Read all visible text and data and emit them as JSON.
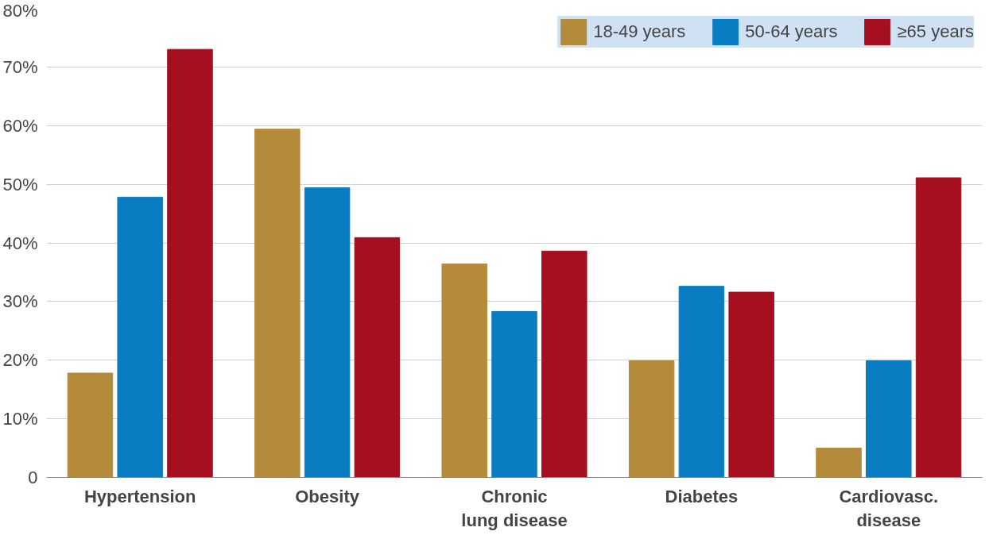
{
  "chart_data": {
    "type": "bar",
    "categories": [
      "Hypertension",
      "Obesity",
      "Chronic\nlung disease",
      "Diabetes",
      "Cardiovasc.\ndisease"
    ],
    "series": [
      {
        "name": "18-49 years",
        "color": "#b38b3a",
        "values": [
          17.8,
          59.4,
          36.4,
          19.9,
          5.0
        ]
      },
      {
        "name": "50-64 years",
        "color": "#0a7cc1",
        "values": [
          47.8,
          49.4,
          28.3,
          32.6,
          19.9
        ]
      },
      {
        "name": "≥65 years",
        "color": "#a50f20",
        "values": [
          73.0,
          40.9,
          38.6,
          31.6,
          51.1
        ]
      }
    ],
    "ylim": [
      0,
      80
    ],
    "yticks": [
      {
        "value": 0,
        "label": "0"
      },
      {
        "value": 10,
        "label": "10%"
      },
      {
        "value": 20,
        "label": "20%"
      },
      {
        "value": 30,
        "label": "30%"
      },
      {
        "value": 40,
        "label": "40%"
      },
      {
        "value": 50,
        "label": "50%"
      },
      {
        "value": 60,
        "label": "60%"
      },
      {
        "value": 70,
        "label": "70%"
      },
      {
        "value": 80,
        "label": "80%"
      }
    ],
    "grid": "y",
    "legend": "top right"
  }
}
